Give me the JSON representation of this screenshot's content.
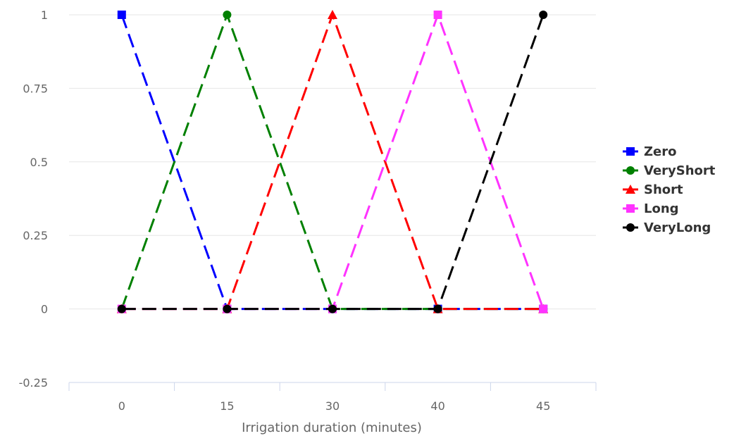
{
  "chart_data": {
    "type": "line",
    "title": "",
    "xlabel": "Irrigation duration (minutes)",
    "ylabel": "",
    "categories": [
      "0",
      "15",
      "30",
      "40",
      "45"
    ],
    "y_ticks": [
      "-0.25",
      "0",
      "0.25",
      "0.5",
      "0.75",
      "1"
    ],
    "ylim": [
      -0.25,
      1
    ],
    "grid": true,
    "legend_position": "right",
    "line_style": "dashed",
    "series": [
      {
        "name": "Zero",
        "color": "#0000ff",
        "marker": "square",
        "values": [
          1,
          0,
          0,
          0,
          0
        ]
      },
      {
        "name": "VeryShort",
        "color": "#008000",
        "marker": "circle",
        "values": [
          0,
          1,
          0,
          0,
          0
        ]
      },
      {
        "name": "Short",
        "color": "#ff0000",
        "marker": "triangle",
        "values": [
          0,
          0,
          1,
          0,
          0
        ]
      },
      {
        "name": "Long",
        "color": "#ff33ff",
        "marker": "square",
        "values": [
          0,
          0,
          0,
          1,
          0
        ]
      },
      {
        "name": "VeryLong",
        "color": "#000000",
        "marker": "circle",
        "values": [
          0,
          0,
          0,
          0,
          1
        ]
      }
    ]
  }
}
